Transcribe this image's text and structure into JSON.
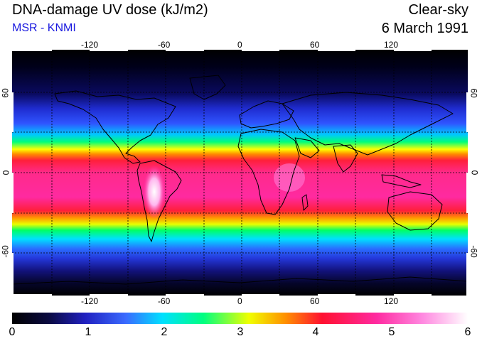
{
  "header": {
    "title": "DNA-damage UV dose (kJ/m2)",
    "source": "MSR - KNMI",
    "condition": "Clear-sky",
    "date": "6 March 1991"
  },
  "map": {
    "lon_ticks": [
      "-120",
      "-60",
      "0",
      "60",
      "120"
    ],
    "lat_ticks": [
      "60",
      "0",
      "-60"
    ]
  },
  "colorbar": {
    "ticks": [
      "0",
      "1",
      "2",
      "3",
      "4",
      "5",
      "6"
    ]
  },
  "colors": {
    "subtitle": "#1a1adf",
    "gradient": [
      "#000000",
      "#1a1a6e",
      "#2f3fe6",
      "#00d6ff",
      "#00ff66",
      "#ffff00",
      "#ff7a00",
      "#ff1f4a",
      "#ff2aa0",
      "#ff7fdc",
      "#ffffff"
    ]
  }
}
